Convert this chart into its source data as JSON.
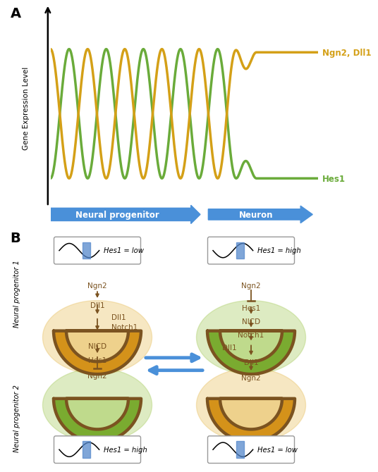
{
  "panel_a_title": "A",
  "panel_b_title": "B",
  "ngn2_color": "#D4A017",
  "hes1_color": "#6AAB3A",
  "arrow_blue": "#4A90D9",
  "dark_brown": "#7B5320",
  "orange_fill": "#D4921A",
  "orange_glow": "#E8C060",
  "green_fill": "#7AAB30",
  "green_glow": "#A8CC60",
  "background": "#FFFFFF",
  "ngn2_label": "Ngn2, Dll1",
  "hes1_label": "Hes1",
  "ylabel": "Gene Expression Level",
  "xarrow1_label": "Neural progenitor",
  "xarrow2_label": "Neuron"
}
